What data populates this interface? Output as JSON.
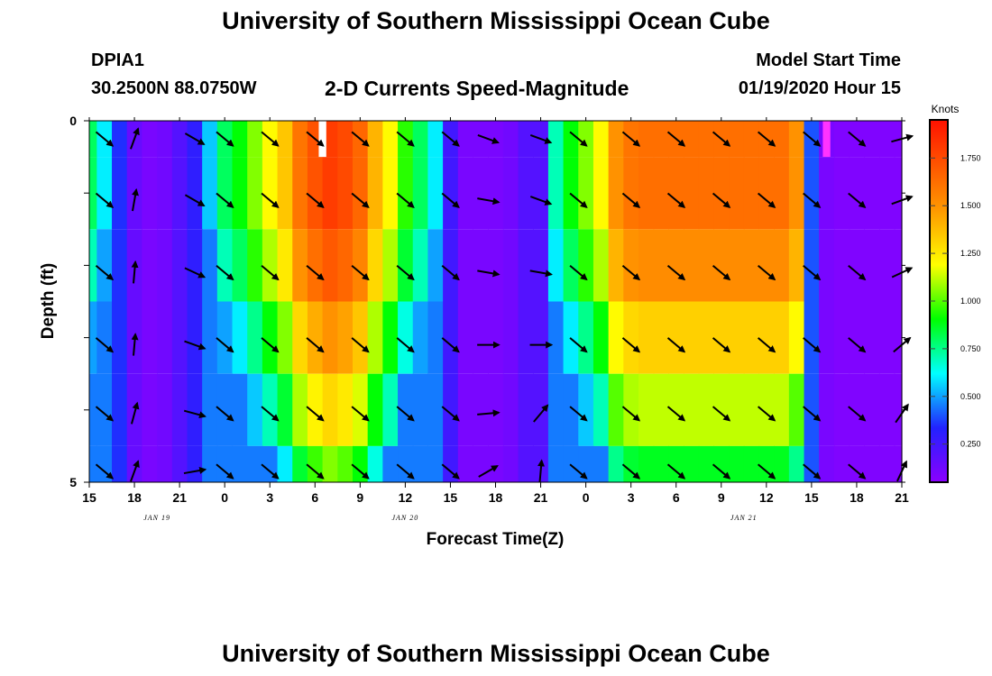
{
  "header": {
    "title_top": "University of Southern Mississippi Ocean Cube",
    "title_bottom": "University of Southern Mississippi Ocean Cube",
    "station_id": "DPIA1",
    "station_coords": "30.2500N 88.0750W",
    "plot_title": "2-D Currents Speed-Magnitude",
    "model_start_label": "Model Start Time",
    "model_start_value": "01/19/2020 Hour 15"
  },
  "chart_data": {
    "type": "heatmap",
    "title": "2-D Currents Speed-Magnitude",
    "xlabel": "Forecast Time(Z)",
    "ylabel": "Depth (ft)",
    "colorbar_title": "Knots",
    "colorbar_ticks": [
      "1.750",
      "1.500",
      "1.250",
      "1.000",
      "0.750",
      "0.500",
      "0.250"
    ],
    "colorbar_range": [
      0.05,
      1.95
    ],
    "x_hours": [
      15,
      16,
      17,
      18,
      19,
      20,
      21,
      22,
      23,
      24,
      25,
      26,
      27,
      28,
      29,
      30,
      31,
      32,
      33,
      34,
      35,
      36,
      37,
      38,
      39,
      40,
      41,
      42,
      43,
      44,
      45,
      46,
      47,
      48,
      49,
      50,
      51,
      52,
      53,
      54,
      55,
      56,
      57,
      58,
      59,
      60,
      61,
      62,
      63,
      64,
      65,
      66,
      67,
      68,
      69
    ],
    "xlim": [
      15,
      69
    ],
    "ylim": [
      0,
      5
    ],
    "x_tick_labels": [
      "15",
      "18",
      "21",
      "0",
      "3",
      "6",
      "9",
      "12",
      "15",
      "18",
      "21",
      "0",
      "3",
      "6",
      "9",
      "12",
      "15",
      "18",
      "21"
    ],
    "x_tick_hours": [
      15,
      18,
      21,
      24,
      27,
      30,
      33,
      36,
      39,
      42,
      45,
      48,
      51,
      54,
      57,
      60,
      63,
      66,
      69
    ],
    "y_tick_labels": [
      "0",
      "5"
    ],
    "date_labels": [
      {
        "text": "JAN 19",
        "hour": 19.5
      },
      {
        "text": "JAN 20",
        "hour": 36
      },
      {
        "text": "JAN 21",
        "hour": 58.5
      }
    ],
    "depth_bands": [
      {
        "name": "0-0.5 ft",
        "offset": 0.0
      },
      {
        "name": "0.5-1.5 ft",
        "offset": 0.0
      },
      {
        "name": "1.5-2.5 ft",
        "offset": -0.1
      },
      {
        "name": "2.5-3.5 ft",
        "offset": -0.3
      },
      {
        "name": "3.5-4.5 ft",
        "offset": -0.5
      },
      {
        "name": "4.5-5 ft",
        "offset": -0.75
      }
    ],
    "surface_speed_knots": [
      0.8,
      0.6,
      0.35,
      0.15,
      0.1,
      0.12,
      0.2,
      0.3,
      0.55,
      0.8,
      0.9,
      1.05,
      1.2,
      1.35,
      1.6,
      1.72,
      1.8,
      1.75,
      1.65,
      1.4,
      1.2,
      0.95,
      0.8,
      0.6,
      0.25,
      0.1,
      0.1,
      0.1,
      0.12,
      0.2,
      0.2,
      0.7,
      0.9,
      1.05,
      1.2,
      1.5,
      1.6,
      1.62,
      1.62,
      1.62,
      1.62,
      1.62,
      1.62,
      1.62,
      1.62,
      1.62,
      1.62,
      1.5,
      0.4,
      0.1,
      0.08,
      0.08,
      0.08,
      0.08,
      0.08
    ],
    "arrow_hours": [
      16,
      18,
      22,
      24,
      27,
      30,
      33,
      36,
      39,
      41.5,
      45,
      47.5,
      51,
      54,
      57,
      60,
      63,
      66,
      69
    ],
    "arrow_rows_ft": [
      0.25,
      1.1,
      2.1,
      3.1,
      4.05,
      4.85
    ],
    "arrow_angles_deg": [
      [
        40,
        -70,
        30,
        40,
        40,
        40,
        40,
        40,
        40,
        20,
        20,
        40,
        40,
        40,
        40,
        40,
        40,
        40,
        -15
      ],
      [
        40,
        -80,
        30,
        40,
        40,
        40,
        40,
        40,
        40,
        10,
        20,
        40,
        40,
        40,
        40,
        40,
        40,
        40,
        -20
      ],
      [
        40,
        -85,
        25,
        40,
        40,
        40,
        40,
        40,
        40,
        10,
        10,
        40,
        40,
        40,
        40,
        40,
        40,
        40,
        -25
      ],
      [
        40,
        -85,
        20,
        40,
        40,
        40,
        40,
        40,
        40,
        0,
        0,
        40,
        40,
        40,
        40,
        40,
        40,
        40,
        -40
      ],
      [
        40,
        -75,
        15,
        40,
        40,
        40,
        40,
        40,
        40,
        -5,
        -50,
        40,
        40,
        40,
        40,
        40,
        40,
        40,
        -55
      ],
      [
        40,
        -70,
        -10,
        40,
        40,
        40,
        40,
        40,
        40,
        -30,
        -85,
        40,
        40,
        40,
        40,
        40,
        40,
        40,
        -65
      ]
    ],
    "missing_cells": [
      {
        "hour": 30.5,
        "depth_top": 0,
        "depth_bottom": 0.5,
        "color": "#ffffff"
      },
      {
        "hour": 64.0,
        "depth_top": 0,
        "depth_bottom": 0.5,
        "color": "#ff33ff"
      }
    ]
  }
}
